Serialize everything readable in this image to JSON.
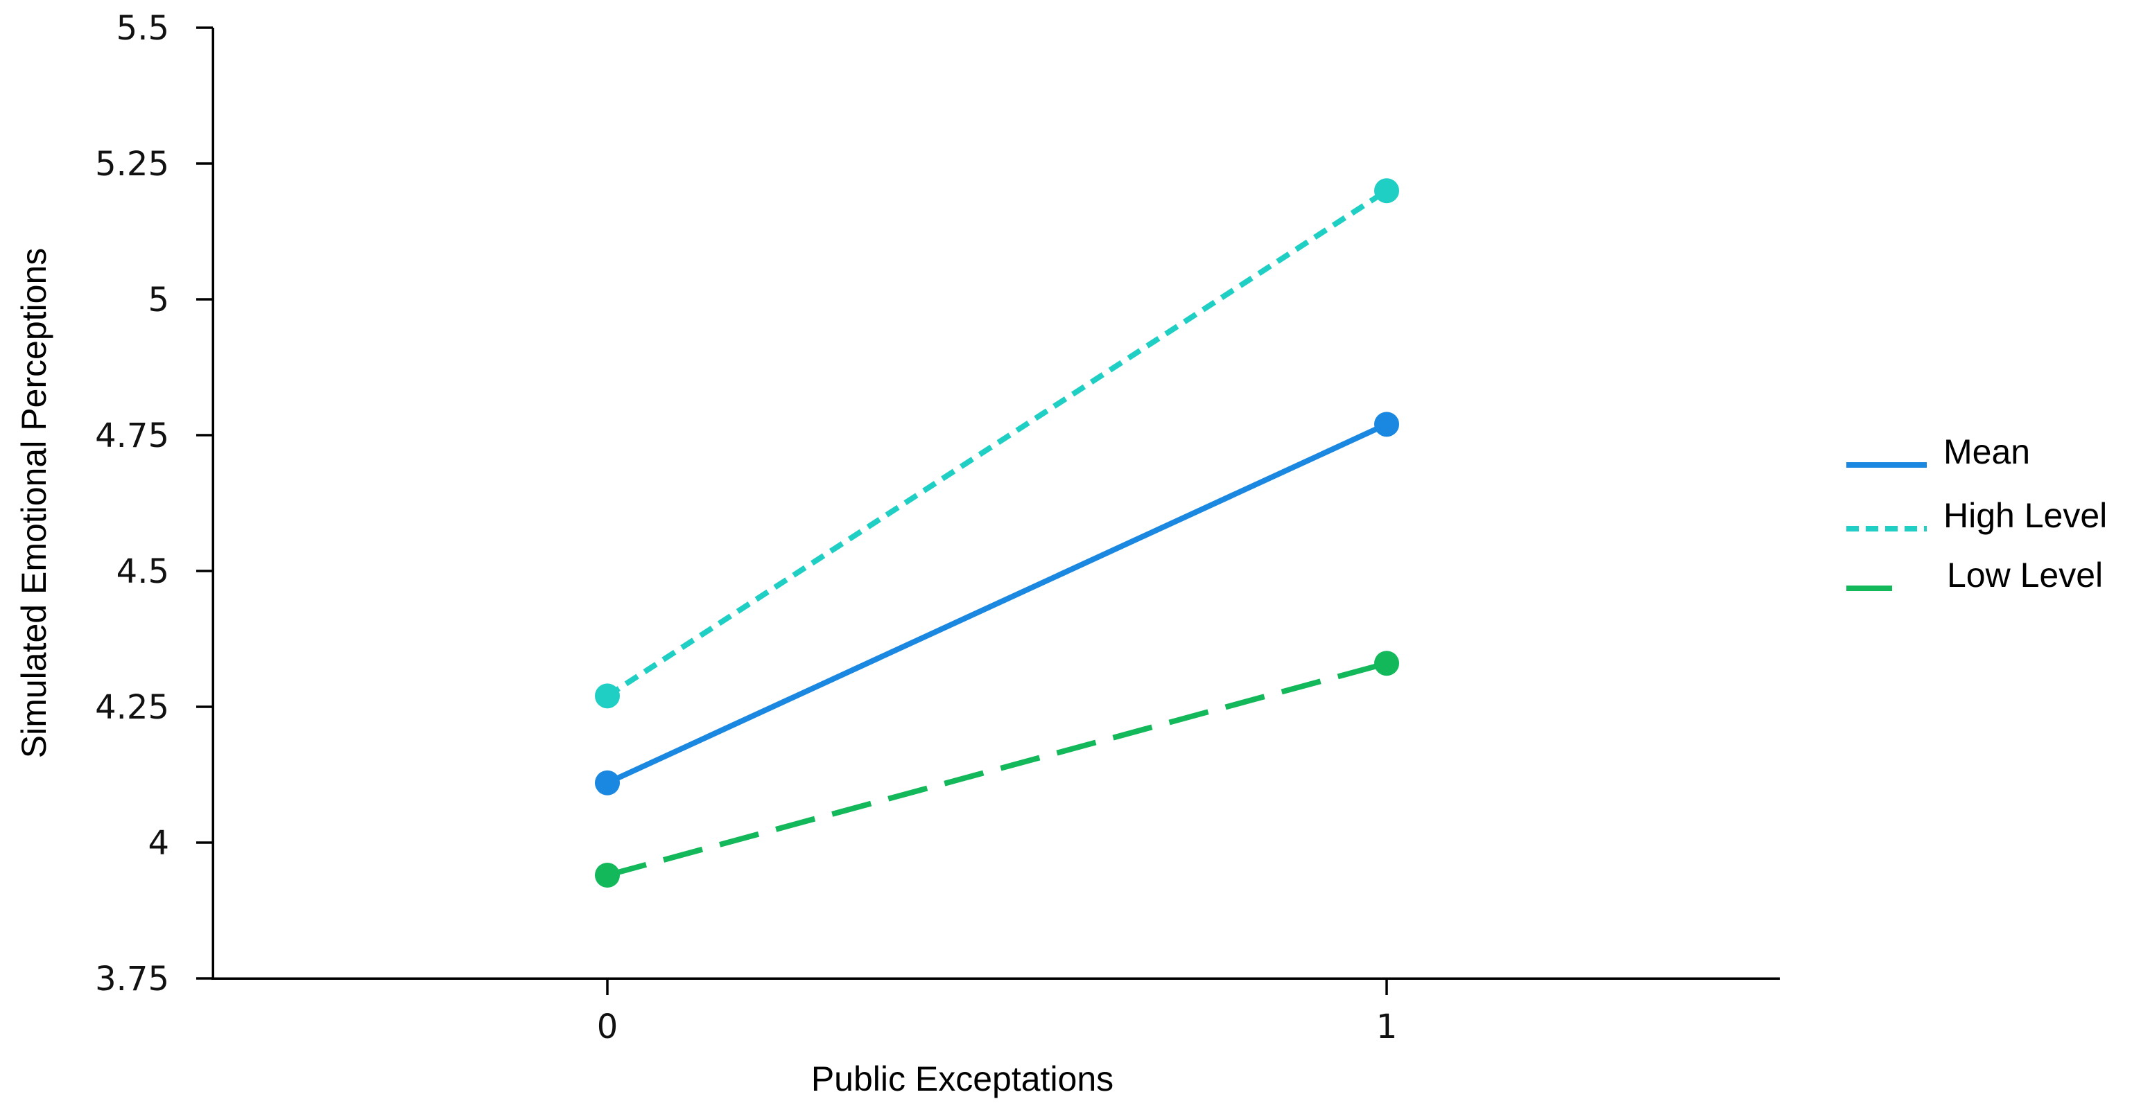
{
  "chart_data": {
    "type": "line",
    "title": "",
    "xlabel": "Public Exceptations",
    "ylabel": "Simulated Emotional Perceptions",
    "x": [
      0,
      1
    ],
    "x_tick_labels": [
      "0",
      "1"
    ],
    "y_ticks": [
      3.75,
      4,
      4.25,
      4.5,
      4.75,
      5,
      5.25,
      5.5
    ],
    "y_tick_labels": [
      "3.75",
      "4",
      "4.25",
      "4.5",
      "4.75",
      "5",
      "5.25",
      "5.5"
    ],
    "ylim": [
      3.75,
      5.5
    ],
    "xlim": [
      -0.5,
      1.5
    ],
    "grid": false,
    "legend_position": "right",
    "series": [
      {
        "name": "Mean",
        "values": [
          4.11,
          4.77
        ],
        "color": "#1a87e0",
        "style": "solid"
      },
      {
        "name": "High Level",
        "values": [
          4.27,
          5.2
        ],
        "color": "#1fcfc4",
        "style": "dotted"
      },
      {
        "name": "Low Level",
        "values": [
          3.94,
          4.33
        ],
        "color": "#12b85a",
        "style": "dashed"
      }
    ]
  }
}
